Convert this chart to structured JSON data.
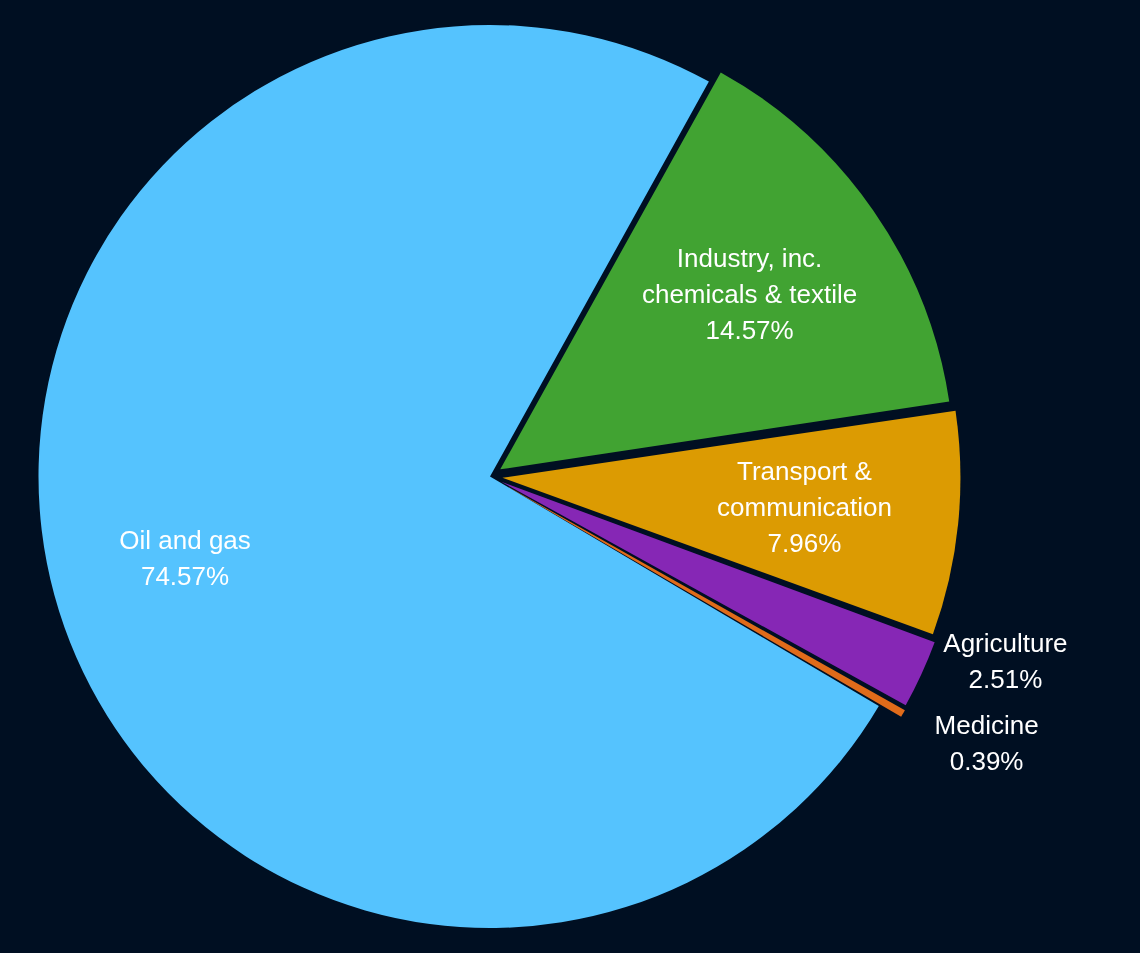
{
  "chart_data": {
    "type": "pie",
    "categories": [
      "Industry, inc. chemicals & textile",
      "Transport & communication",
      "Agriculture",
      "Medicine",
      "Oil and gas"
    ],
    "values": [
      14.57,
      7.96,
      2.51,
      0.39,
      74.57
    ],
    "colors": [
      "#41a332",
      "#dc9b02",
      "#8627b5",
      "#e06b1a",
      "#55c3fe"
    ],
    "value_labels": [
      "14.57%",
      "7.96%",
      "2.51%",
      "0.39%",
      "74.57%"
    ],
    "legend": false
  }
}
